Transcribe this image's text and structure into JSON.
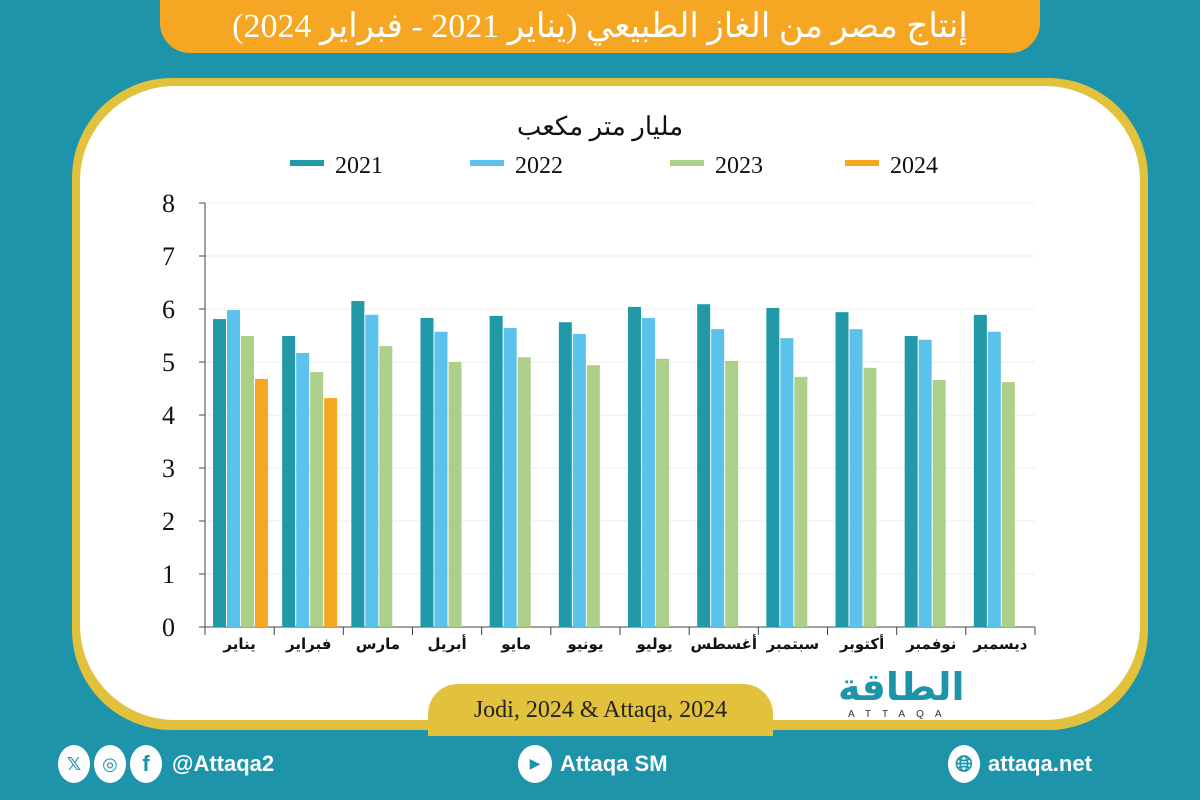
{
  "title": "إنتاج مصر من الغاز الطبيعي (يناير 2021 - فبراير 2024)",
  "source": "Jodi, 2024 & Attaqa, 2024",
  "logo": {
    "arabic": "الطاقة",
    "latin": "ATTAQA"
  },
  "footer": {
    "social_handle": "@Attaqa2",
    "youtube": "Attaqa SM",
    "website": "attaqa.net"
  },
  "colors": {
    "2021": "#2299a8",
    "2022": "#5bc2ec",
    "2023": "#acd08a",
    "2024": "#f5a623",
    "accent": "#e2c23d",
    "background": "#1d94aa"
  },
  "chart_data": {
    "type": "bar",
    "title": "",
    "ylabel": "مليار متر مكعب",
    "xlabel": "",
    "ylim": [
      0,
      8
    ],
    "yticks": [
      0,
      1,
      2,
      3,
      4,
      5,
      6,
      7,
      8
    ],
    "grid": true,
    "legend_placement": "top",
    "categories": [
      "يناير",
      "فبراير",
      "مارس",
      "أبريل",
      "مايو",
      "يونيو",
      "يوليو",
      "أغسطس",
      "سبتمبر",
      "أكتوبر",
      "نوفمبر",
      "ديسمبر"
    ],
    "series": [
      {
        "name": "2021",
        "values": [
          5.81,
          5.49,
          6.15,
          5.83,
          5.87,
          5.75,
          6.04,
          6.09,
          6.02,
          5.94,
          5.49,
          5.89
        ]
      },
      {
        "name": "2022",
        "values": [
          5.98,
          5.17,
          5.89,
          5.57,
          5.64,
          5.53,
          5.83,
          5.62,
          5.45,
          5.62,
          5.42,
          5.57
        ]
      },
      {
        "name": "2023",
        "values": [
          5.49,
          4.81,
          5.3,
          5.0,
          5.09,
          4.94,
          5.06,
          5.02,
          4.72,
          4.89,
          4.66,
          4.62
        ]
      },
      {
        "name": "2024",
        "values": [
          4.68,
          4.32,
          null,
          null,
          null,
          null,
          null,
          null,
          null,
          null,
          null,
          null
        ]
      }
    ]
  }
}
